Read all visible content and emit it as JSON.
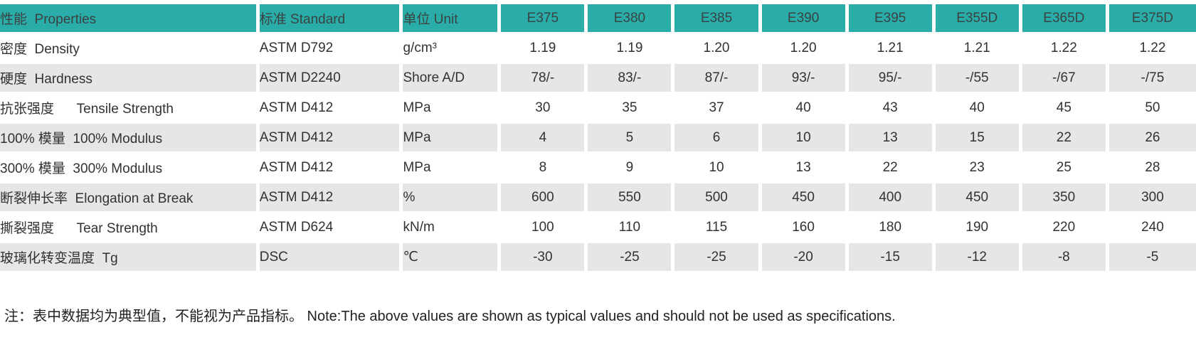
{
  "colors": {
    "header_bg": "#2aada9",
    "row_bg": "#ffffff",
    "row_alt_bg": "#e6e6e6",
    "header_text": "#3a4342",
    "body_text": "#323232"
  },
  "chart_data": {
    "type": "table",
    "columns": [
      "性能  Properties",
      "标准 Standard",
      "单位 Unit",
      "E375",
      "E380",
      "E385",
      "E390",
      "E395",
      "E355D",
      "E365D",
      "E375D"
    ],
    "column_keys": [
      "properties",
      "standard",
      "unit",
      "e375",
      "e380",
      "e385",
      "e390",
      "e395",
      "e355d",
      "e365d",
      "e375d"
    ],
    "rows": [
      [
        "密度  Density",
        "ASTM D792",
        "g/cm³",
        "1.19",
        "1.19",
        "1.20",
        "1.20",
        "1.21",
        "1.21",
        "1.22",
        "1.22"
      ],
      [
        "硬度  Hardness",
        "ASTM D2240",
        "Shore A/D",
        "78/-",
        "83/-",
        "87/-",
        "93/-",
        "95/-",
        "-/55",
        "-/67",
        "-/75"
      ],
      [
        "抗张强度      Tensile Strength",
        "ASTM D412",
        "MPa",
        "30",
        "35",
        "37",
        "40",
        "43",
        "40",
        "45",
        "50"
      ],
      [
        "100% 模量  100% Modulus",
        "ASTM D412",
        "MPa",
        "4",
        "5",
        "6",
        "10",
        "13",
        "15",
        "22",
        "26"
      ],
      [
        "300% 模量  300% Modulus",
        "ASTM D412",
        "MPa",
        "8",
        "9",
        "10",
        "13",
        "22",
        "23",
        "25",
        "28"
      ],
      [
        "断裂伸长率  Elongation at Break",
        "ASTM D412",
        "%",
        "600",
        "550",
        "500",
        "450",
        "400",
        "450",
        "350",
        "300"
      ],
      [
        "撕裂强度      Tear Strength",
        "ASTM D624",
        "kN/m",
        "100",
        "110",
        "115",
        "160",
        "180",
        "190",
        "220",
        "240"
      ],
      [
        "玻璃化转变温度  Tg",
        "DSC",
        "℃",
        "-30",
        "-25",
        "-25",
        "-20",
        "-15",
        "-12",
        "-8",
        "-5"
      ]
    ]
  },
  "footer": {
    "note": "注：表中数据均为典型值，不能视为产品指标。 Note:The above values are shown as typical values and should not be used as specifications."
  }
}
